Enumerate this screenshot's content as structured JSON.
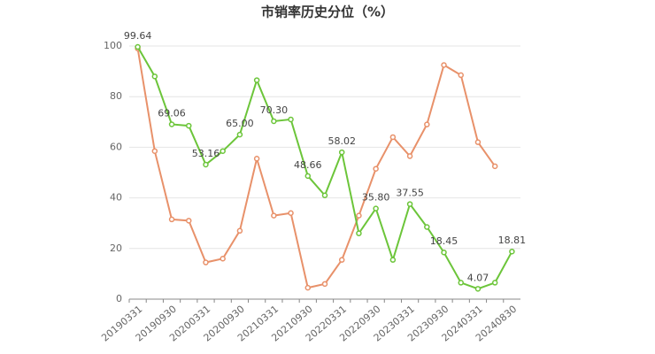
{
  "chart_data": {
    "type": "line",
    "title": "市销率历史分位（%）",
    "categories": [
      "20190331",
      null,
      "20190930",
      null,
      "20200331",
      null,
      "20200930",
      null,
      "20210331",
      null,
      "20210930",
      null,
      "20220331",
      null,
      "20220930",
      null,
      "20230331",
      null,
      "20230930",
      null,
      "20240331",
      null,
      "20240830"
    ],
    "series": [
      {
        "color": "#6cc53a",
        "values": [
          99.64,
          88,
          69.06,
          68.5,
          53.16,
          58.5,
          65.0,
          86.5,
          70.3,
          71,
          48.66,
          41,
          58.02,
          26,
          35.8,
          15.5,
          37.55,
          28.5,
          18.45,
          6.5,
          4.07,
          6.5,
          18.81
        ],
        "value_labels": [
          "99.64",
          null,
          "69.06",
          null,
          "53.16",
          null,
          "65.00",
          null,
          "70.30",
          null,
          "48.66",
          null,
          "58.02",
          null,
          "35.80",
          null,
          "37.55",
          null,
          "18.45",
          null,
          "4.07",
          null,
          "18.81"
        ]
      },
      {
        "color": "#e8916a",
        "values": [
          99,
          58.5,
          31.5,
          31,
          14.5,
          16,
          27,
          55.5,
          33,
          34,
          4.5,
          6,
          15.5,
          33,
          51.5,
          64,
          56.5,
          69,
          92.5,
          88.5,
          62,
          52.5,
          null
        ]
      }
    ],
    "ylim": [
      0,
      100
    ],
    "yticks": [
      0,
      20,
      40,
      60,
      80,
      100
    ],
    "grid": true
  }
}
